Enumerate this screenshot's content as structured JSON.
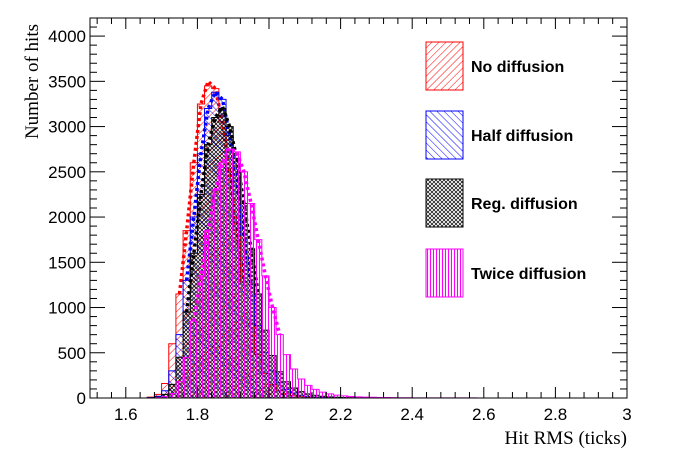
{
  "chart_data": {
    "type": "histogram",
    "title": "",
    "xlabel": "Hit RMS (ticks)",
    "ylabel": "Number of hits",
    "xlim": [
      1.5,
      3.0
    ],
    "ylim": [
      0,
      4200
    ],
    "x_ticks": [
      1.6,
      1.8,
      2.0,
      2.2,
      2.4,
      2.6,
      2.8,
      3.0
    ],
    "x_tick_labels": [
      "1.6",
      "1.8",
      "2",
      "2.2",
      "2.4",
      "2.6",
      "2.8",
      "3"
    ],
    "y_ticks": [
      0,
      500,
      1000,
      1500,
      2000,
      2500,
      3000,
      3500,
      4000
    ],
    "y_tick_labels": [
      "0",
      "500",
      "1000",
      "1500",
      "2000",
      "2500",
      "3000",
      "3500",
      "4000"
    ],
    "grid": false,
    "legend_position": "top-right",
    "bin_width": 0.02,
    "bin_centers": [
      1.51,
      1.53,
      1.55,
      1.57,
      1.59,
      1.61,
      1.63,
      1.65,
      1.67,
      1.69,
      1.71,
      1.73,
      1.75,
      1.77,
      1.79,
      1.81,
      1.83,
      1.85,
      1.87,
      1.89,
      1.91,
      1.93,
      1.95,
      1.97,
      1.99,
      2.01,
      2.03,
      2.05,
      2.07,
      2.09,
      2.11,
      2.13,
      2.15,
      2.17,
      2.19,
      2.21,
      2.23,
      2.25,
      2.27,
      2.29,
      2.31,
      2.33,
      2.35,
      2.37,
      2.39,
      2.41,
      2.43,
      2.45,
      2.47,
      2.49,
      2.51,
      2.53,
      2.55,
      2.57,
      2.59,
      2.61,
      2.63,
      2.65,
      2.67,
      2.69,
      2.71,
      2.73,
      2.75,
      2.77,
      2.79,
      2.81,
      2.83,
      2.85,
      2.87,
      2.89,
      2.91,
      2.93,
      2.95,
      2.97,
      2.99
    ],
    "series": [
      {
        "name": "No diffusion",
        "color": "#ff0000",
        "hatch": "diagonal-lines",
        "values": [
          0,
          0,
          0,
          0,
          0,
          0,
          0,
          0,
          10,
          40,
          160,
          600,
          1150,
          1850,
          2600,
          3250,
          3450,
          3420,
          3050,
          2500,
          1850,
          1280,
          820,
          480,
          270,
          150,
          80,
          45,
          25,
          15,
          10,
          8,
          5,
          3,
          2,
          2,
          1,
          1,
          0,
          0,
          0,
          0,
          0,
          0,
          0,
          0,
          0,
          0,
          0,
          0,
          0,
          0,
          0,
          0,
          0,
          0,
          0,
          0,
          0,
          0,
          0,
          0,
          0,
          0,
          0,
          0,
          0,
          0,
          0,
          0,
          0,
          0,
          0,
          0,
          0
        ],
        "fit_peak": 3500
      },
      {
        "name": "Half diffusion",
        "color": "#0000ff",
        "hatch": "diagonal-lines-reverse",
        "values": [
          0,
          0,
          0,
          0,
          0,
          0,
          0,
          0,
          5,
          20,
          80,
          300,
          700,
          1300,
          2000,
          2700,
          3200,
          3380,
          3300,
          2900,
          2400,
          1800,
          1250,
          800,
          500,
          300,
          170,
          95,
          55,
          30,
          18,
          10,
          6,
          4,
          2,
          1,
          1,
          0,
          0,
          0,
          0,
          0,
          0,
          0,
          0,
          0,
          0,
          0,
          0,
          0,
          0,
          0,
          0,
          0,
          0,
          0,
          0,
          0,
          0,
          0,
          0,
          0,
          0,
          0,
          0,
          0,
          0,
          0,
          0,
          0,
          0,
          0,
          0,
          0,
          0
        ],
        "fit_peak": 3380
      },
      {
        "name": "Reg. diffusion",
        "color": "#000000",
        "hatch": "cross-hatch",
        "values": [
          0,
          0,
          0,
          0,
          0,
          0,
          0,
          0,
          3,
          10,
          40,
          150,
          450,
          950,
          1600,
          2250,
          2800,
          3100,
          3200,
          3000,
          2650,
          2150,
          1650,
          1150,
          750,
          470,
          290,
          180,
          110,
          70,
          45,
          30,
          20,
          13,
          8,
          5,
          3,
          2,
          1,
          1,
          0,
          0,
          0,
          0,
          0,
          0,
          0,
          0,
          0,
          0,
          0,
          0,
          0,
          0,
          0,
          0,
          0,
          0,
          0,
          0,
          0,
          0,
          0,
          0,
          0,
          0,
          0,
          0,
          0,
          0,
          0,
          0,
          0,
          0,
          0
        ],
        "fit_peak": 3220
      },
      {
        "name": "Twice diffusion",
        "color": "#ff00ff",
        "hatch": "vertical-lines",
        "values": [
          0,
          0,
          0,
          0,
          0,
          0,
          0,
          0,
          2,
          5,
          15,
          50,
          180,
          450,
          850,
          1350,
          1850,
          2300,
          2600,
          2750,
          2720,
          2500,
          2150,
          1750,
          1350,
          1000,
          700,
          480,
          320,
          210,
          140,
          95,
          65,
          45,
          32,
          23,
          17,
          13,
          10,
          8,
          6,
          5,
          4,
          3,
          3,
          2,
          2,
          2,
          1,
          1,
          1,
          1,
          1,
          1,
          0,
          0,
          0,
          0,
          0,
          0,
          0,
          0,
          0,
          0,
          0,
          0,
          0,
          0,
          0,
          0,
          0,
          0,
          0,
          0,
          0
        ],
        "fit_peak": 2760
      }
    ]
  }
}
